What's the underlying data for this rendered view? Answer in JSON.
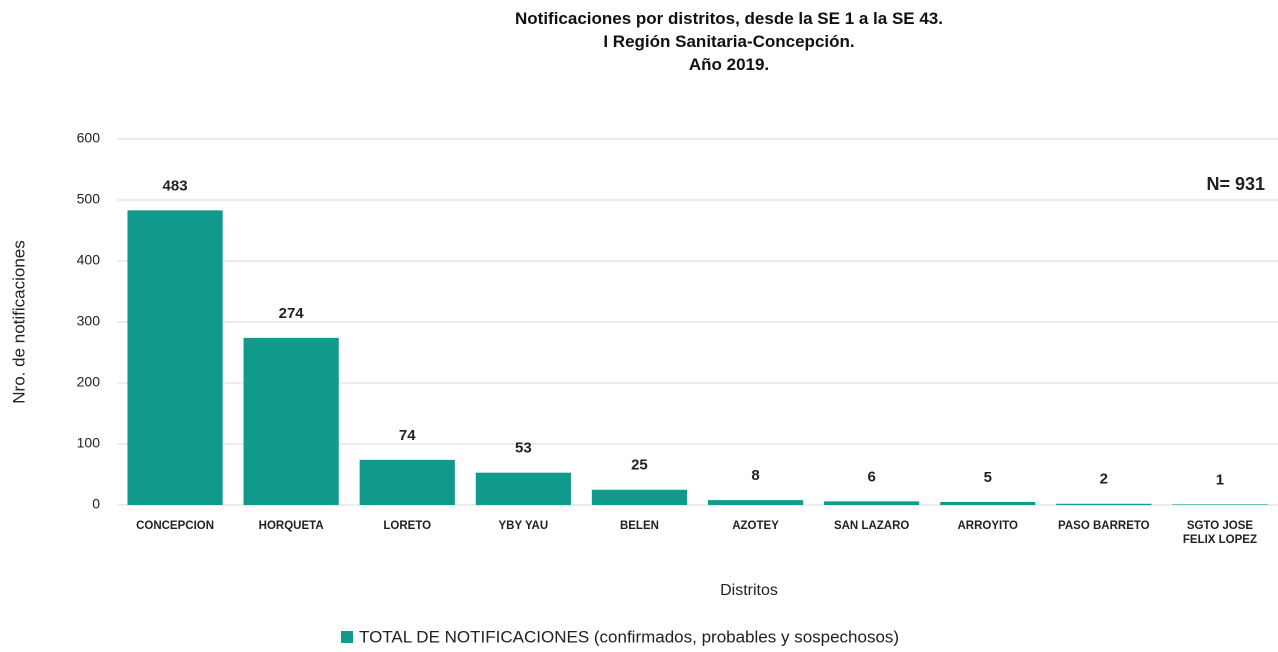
{
  "chart_data": {
    "type": "bar",
    "title": "Notificaciones por distritos, desde la SE 1 a la SE 43.\nI Región Sanitaria-Concepción.\nAño 2019.",
    "annotation": "N= 931",
    "x_label": "Distritos",
    "y_label": "Nro. de notificaciones",
    "categories": [
      "CONCEPCION",
      "HORQUETA",
      "LORETO",
      "YBY YAU",
      "BELEN",
      "AZOTEY",
      "SAN LAZARO",
      "ARROYITO",
      "PASO BARRETO",
      "SGTO JOSE\nFELIX LOPEZ"
    ],
    "series": [
      {
        "name": "TOTAL DE NOTIFICACIONES (confirmados, probables y sospechosos)",
        "color": "#109a8b",
        "values": [
          483,
          274,
          74,
          53,
          25,
          8,
          6,
          5,
          2,
          1
        ]
      }
    ],
    "ylim": [
      0,
      600
    ],
    "yticks": [
      0,
      100,
      200,
      300,
      400,
      500,
      600
    ],
    "grid": true,
    "legend": "bottom"
  }
}
